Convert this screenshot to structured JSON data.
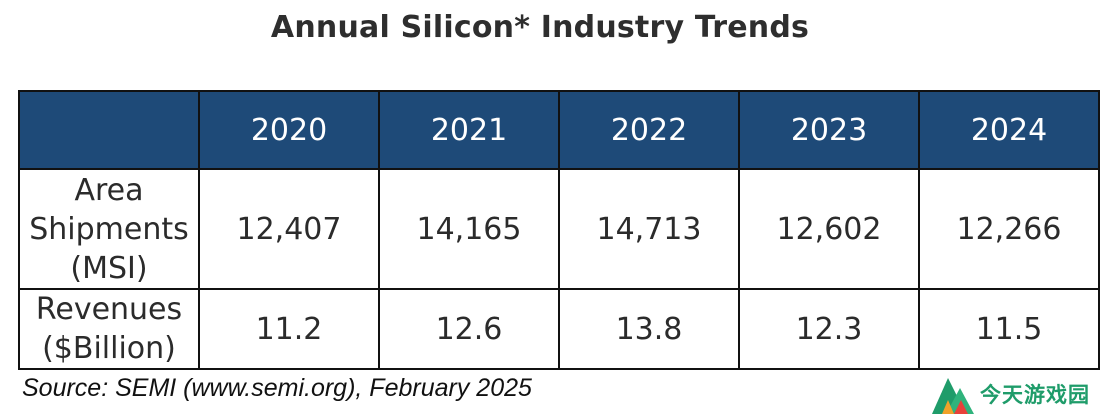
{
  "title": "Annual Silicon* Industry Trends",
  "source": "Source: SEMI (www.semi.org), February 2025",
  "logo_text": "今天游戏园",
  "colors": {
    "header_bg": "#1e4a78",
    "header_text": "#ffffff",
    "border": "#111111"
  },
  "chart_data": {
    "type": "table",
    "title": "Annual Silicon* Industry Trends",
    "columns": [
      "",
      "2020",
      "2021",
      "2022",
      "2023",
      "2024"
    ],
    "rows": [
      {
        "label_lines": [
          "Area",
          "Shipments",
          "(MSI)"
        ],
        "display": [
          "12,407",
          "14,165",
          "14,713",
          "12,602",
          "12,266"
        ],
        "values": [
          12407,
          14165,
          14713,
          12602,
          12266
        ]
      },
      {
        "label_lines": [
          "Revenues",
          "($Billion)"
        ],
        "display": [
          "11.2",
          "12.6",
          "13.8",
          "12.3",
          "11.5"
        ],
        "values": [
          11.2,
          12.6,
          13.8,
          12.3,
          11.5
        ]
      }
    ]
  }
}
